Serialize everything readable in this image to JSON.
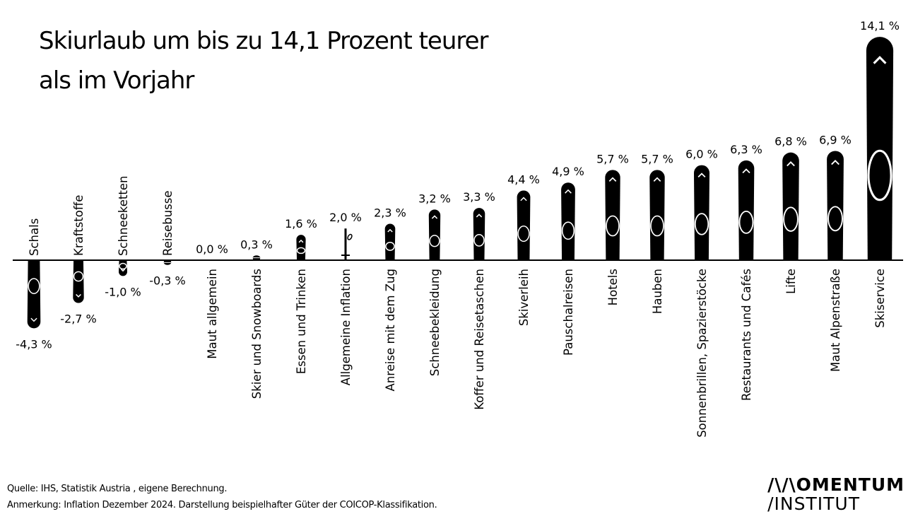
{
  "chart_data": {
    "type": "bar",
    "title": "Skiurlaub um bis zu 14,1 Prozent teurer als im Vorjahr",
    "title_lines": [
      "Skiurlaub um bis zu 14,1 Prozent teurer",
      "als im Vorjahr"
    ],
    "categories": [
      "Schals",
      "Kraftstoffe",
      "Schneeketten",
      "Reisebusse",
      "Maut allgemein",
      "Skier und Snowboards",
      "Essen und Trinken",
      "Allgemeine Inflation",
      "Anreise mit dem Zug",
      "Schneebekleidung",
      "Koffer und Reisetaschen",
      "Skiverleih",
      "Pauschalreisen",
      "Hotels",
      "Hauben",
      "Sonnenbrillen, Spazierstöcke",
      "Restaurants und Cafés",
      "Lifte",
      "Maut Alpenstraße",
      "Skiservice"
    ],
    "values": [
      -4.3,
      -2.7,
      -1.0,
      -0.3,
      0.0,
      0.3,
      1.6,
      2.0,
      2.3,
      3.2,
      3.3,
      4.4,
      4.9,
      5.7,
      5.7,
      6.0,
      6.3,
      6.8,
      6.9,
      14.1
    ],
    "data_labels": [
      "-4,3 %",
      "-2,7 %",
      "-1,0 %",
      "-0,3 %",
      "0,0 %",
      "0,3 %",
      "1,6 %",
      "2,0 %",
      "2,3 %",
      "3,2 %",
      "3,3 %",
      "4,4 %",
      "4,9 %",
      "5,7 %",
      "5,7 %",
      "6,0 %",
      "6,3 %",
      "6,8 %",
      "6,9 %",
      "14,1 %"
    ],
    "highlight_category": "Allgemeine Inflation",
    "mark_style": "ski shapes (ski pole for Allgemeine Inflation)",
    "unit": "%",
    "ylim": [
      -4.3,
      14.1
    ],
    "grid": false,
    "legend": "none",
    "colors": {
      "bars": "#000000",
      "background": "#ffffff"
    }
  },
  "footer": {
    "source": "Quelle: IHS, Statistik Austria , eigene Berechnung.",
    "note": "Anmerkung: Inflation Dezember 2024. Darstellung beispielhafter Güter der COICOP-Klassifikation."
  },
  "logo": {
    "line1": "/\\/\\OMENTUM",
    "line2": "/INSTITUT"
  }
}
